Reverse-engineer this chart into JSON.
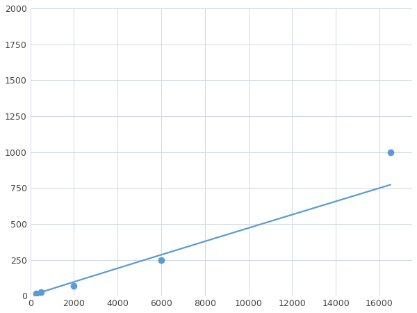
{
  "x": [
    250,
    500,
    2000,
    6000,
    16500
  ],
  "y": [
    15,
    25,
    70,
    250,
    1000
  ],
  "line_color": "#5b9bd5",
  "marker_color": "#5b9bd5",
  "marker_size": 6,
  "line_width": 1.6,
  "xlim": [
    0,
    17500
  ],
  "ylim": [
    0,
    2000
  ],
  "xticks": [
    0,
    2000,
    4000,
    6000,
    8000,
    10000,
    12000,
    14000,
    16000
  ],
  "yticks": [
    0,
    250,
    500,
    750,
    1000,
    1250,
    1500,
    1750,
    2000
  ],
  "grid_color": "#d0d8e4",
  "background_color": "#ffffff",
  "fig_bg_color": "#ffffff"
}
